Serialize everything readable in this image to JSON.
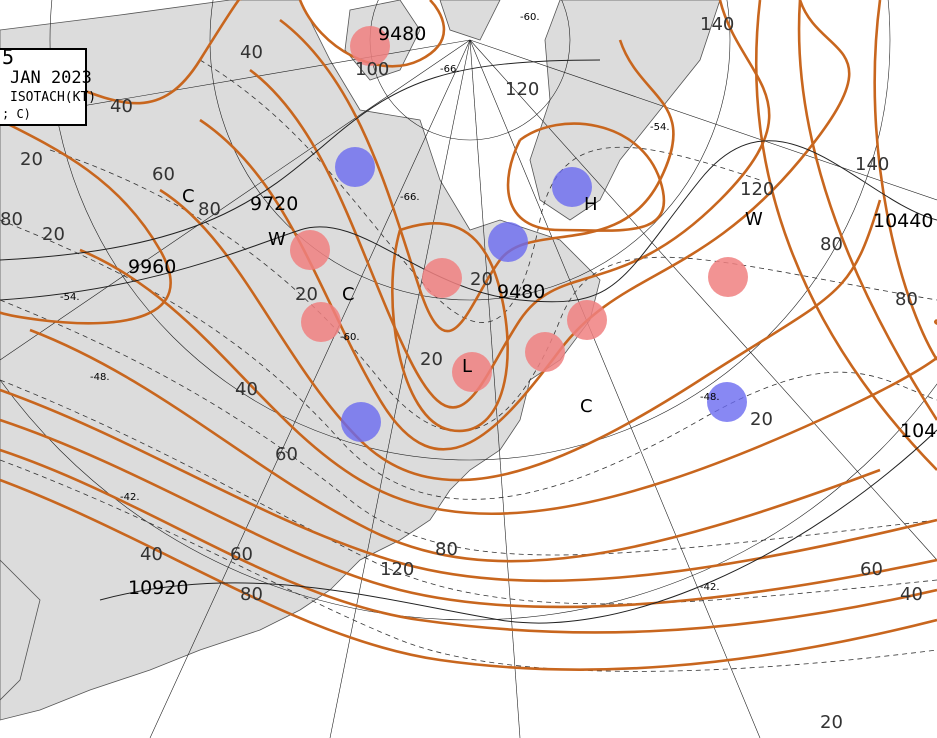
{
  "title_box": {
    "line1": "5",
    "line2": "JAN 2023",
    "line3": "ISOTACH(KT)",
    "line4": "; C)"
  },
  "colors": {
    "land": "#dcdcdc",
    "isotach": "#c8661e",
    "warm_marker": "#f08080",
    "cold_marker": "#6a6af0"
  },
  "height_labels": [
    "9480",
    "9720",
    "9960",
    "10920",
    "10440",
    "9480",
    "104"
  ],
  "isotach_labels": [
    "20",
    "40",
    "60",
    "80",
    "100",
    "120",
    "140",
    "20",
    "20",
    "20",
    "40",
    "60",
    "80",
    "20",
    "40",
    "60",
    "80",
    "120",
    "80",
    "140",
    "120",
    "80",
    "40",
    "20",
    "60",
    "20",
    "40",
    "80"
  ],
  "centers": [
    "H",
    "L",
    "C",
    "C",
    "W",
    "W",
    "C"
  ],
  "temp_labels": [
    "-66.",
    "-60.",
    "-54.",
    "-48.",
    "-42.",
    "-54.",
    "-48.",
    "-42.",
    "-60.",
    "-66."
  ],
  "markers": [
    {
      "type": "warm"
    },
    {
      "type": "cold"
    },
    {
      "type": "warm"
    },
    {
      "type": "warm"
    },
    {
      "type": "warm"
    },
    {
      "type": "cold"
    },
    {
      "type": "cold"
    },
    {
      "type": "warm"
    },
    {
      "type": "warm"
    },
    {
      "type": "warm"
    },
    {
      "type": "warm"
    },
    {
      "type": "cold"
    },
    {
      "type": "cold"
    }
  ]
}
